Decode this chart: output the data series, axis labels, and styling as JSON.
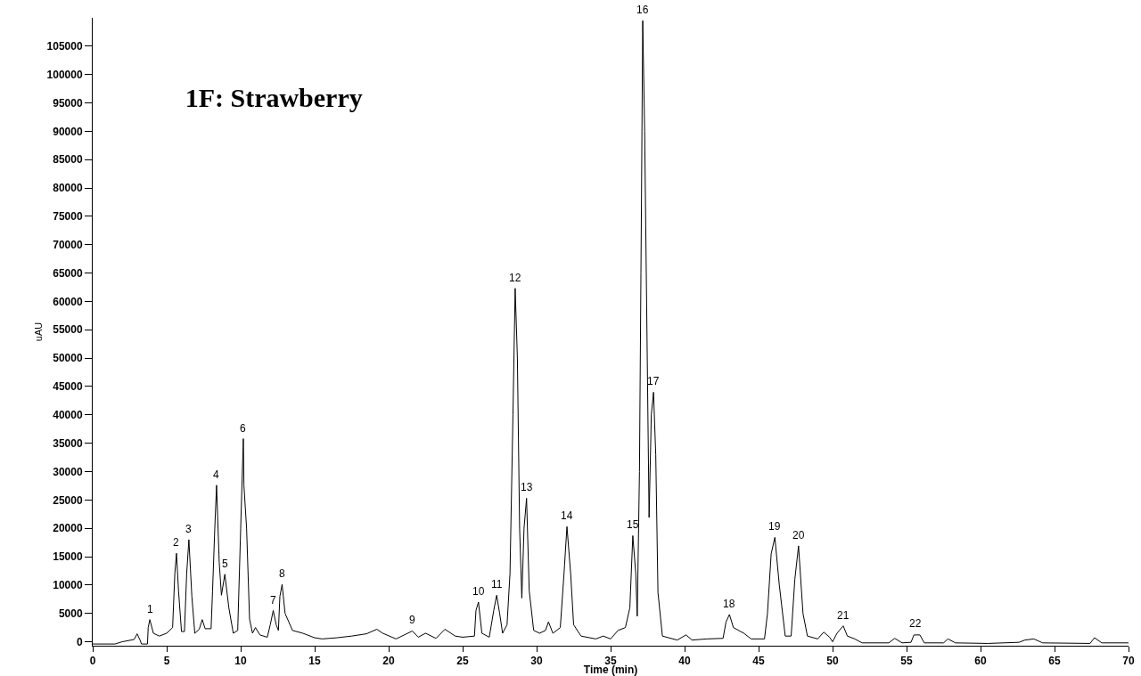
{
  "chart_data": {
    "type": "line",
    "title": "1F: Strawberry",
    "xlabel": "Time (min)",
    "ylabel": "uAU",
    "x": [
      0,
      1.5,
      2.0,
      2.8,
      3.0,
      3.2,
      3.3,
      3.7,
      3.75,
      3.86,
      4.1,
      4.5,
      5.0,
      5.4,
      5.55,
      5.66,
      5.8,
      6.0,
      6.2,
      6.35,
      6.5,
      6.7,
      6.9,
      7.2,
      7.4,
      7.6,
      8.0,
      8.1,
      8.25,
      8.37,
      8.55,
      8.7,
      8.93,
      9.2,
      9.5,
      9.8,
      10.0,
      10.18,
      10.22,
      10.4,
      10.6,
      10.8,
      11.0,
      11.3,
      11.8,
      12.0,
      12.2,
      12.4,
      12.55,
      12.65,
      12.8,
      13.0,
      13.5,
      14.2,
      15.0,
      15.5,
      16.5,
      17.5,
      18.5,
      19.2,
      19.6,
      20.5,
      21.6,
      22.0,
      22.5,
      23.2,
      23.8,
      24.5,
      25.0,
      25.8,
      25.9,
      26.07,
      26.3,
      26.8,
      27.1,
      27.3,
      27.5,
      27.7,
      28.0,
      28.2,
      28.4,
      28.55,
      28.7,
      28.85,
      29.0,
      29.15,
      29.32,
      29.5,
      29.8,
      30.2,
      30.6,
      30.8,
      31.1,
      31.6,
      31.85,
      32.05,
      32.3,
      32.5,
      33.0,
      34.0,
      34.5,
      35.0,
      35.5,
      36.0,
      36.3,
      36.5,
      36.7,
      36.8,
      36.95,
      37.05,
      37.17,
      37.3,
      37.6,
      37.75,
      37.9,
      38.05,
      38.2,
      38.5,
      39.5,
      40.1,
      40.5,
      41.5,
      42.6,
      42.8,
      43.03,
      43.3,
      44.0,
      44.5,
      45.4,
      45.6,
      45.85,
      46.1,
      46.4,
      46.8,
      47.2,
      47.45,
      47.7,
      48.0,
      48.3,
      49.0,
      49.4,
      49.8,
      50.0,
      50.3,
      50.72,
      51.0,
      51.5,
      52.0,
      53.8,
      54.2,
      54.7,
      55.3,
      55.5,
      55.9,
      56.2,
      57.5,
      57.8,
      58.3,
      60.5,
      62.6,
      63.0,
      63.6,
      64.2,
      67.4,
      67.7,
      68.2,
      70
    ],
    "series": [
      {
        "color": "#000000",
        "values": [
          -400,
          -400,
          0,
          400,
          1400,
          300,
          -400,
          -400,
          2500,
          3900,
          1500,
          1000,
          1500,
          2500,
          12000,
          15600,
          9000,
          1800,
          1800,
          12000,
          18000,
          8000,
          1500,
          2200,
          3900,
          2300,
          2300,
          9000,
          20000,
          27600,
          14000,
          8200,
          11900,
          6000,
          1500,
          2000,
          20000,
          35800,
          27600,
          20000,
          4000,
          1500,
          2500,
          1200,
          800,
          3000,
          5500,
          3000,
          2000,
          8000,
          10100,
          5000,
          2000,
          1500,
          700,
          500,
          700,
          1000,
          1400,
          2200,
          1500,
          500,
          1900,
          800,
          1500,
          600,
          2200,
          1000,
          800,
          1000,
          5500,
          7000,
          1500,
          800,
          5500,
          8200,
          5000,
          1500,
          3000,
          12000,
          40000,
          62300,
          50000,
          20000,
          7700,
          20000,
          25300,
          9000,
          2000,
          1500,
          2000,
          3500,
          1500,
          2500,
          12000,
          20300,
          12000,
          3000,
          1000,
          500,
          1000,
          500,
          2000,
          2500,
          6000,
          18700,
          12000,
          4500,
          30000,
          65000,
          109500,
          90000,
          21900,
          40000,
          44000,
          33000,
          8700,
          1000,
          300,
          1200,
          300,
          500,
          600,
          3500,
          4800,
          2500,
          1500,
          500,
          500,
          5000,
          15500,
          18400,
          10000,
          1000,
          1000,
          11000,
          16900,
          5000,
          1000,
          500,
          1700,
          800,
          0,
          1500,
          2800,
          1000,
          500,
          -200,
          -200,
          600,
          -200,
          -100,
          1200,
          1200,
          -200,
          -200,
          500,
          -200,
          -300,
          -100,
          300,
          500,
          -200,
          -300,
          700,
          -200,
          -200
        ]
      }
    ],
    "xlim": [
      0,
      70
    ],
    "xticks": [
      0,
      5,
      10,
      15,
      20,
      25,
      30,
      35,
      40,
      45,
      50,
      55,
      60,
      65,
      70
    ],
    "ylim": [
      -700,
      110000
    ],
    "yticks": [
      0,
      5000,
      10000,
      15000,
      20000,
      25000,
      30000,
      35000,
      40000,
      45000,
      50000,
      55000,
      60000,
      65000,
      70000,
      75000,
      80000,
      85000,
      90000,
      95000,
      100000,
      105000
    ],
    "grid": false,
    "marker": "none",
    "line_style": "solid",
    "annotations": [
      {
        "text": "1",
        "x": 3.86,
        "y": 3900
      },
      {
        "text": "2",
        "x": 5.66,
        "y": 15600
      },
      {
        "text": "3",
        "x": 6.5,
        "y": 18000
      },
      {
        "text": "4",
        "x": 8.37,
        "y": 27600
      },
      {
        "text": "5",
        "x": 8.93,
        "y": 11900
      },
      {
        "text": "6",
        "x": 10.18,
        "y": 35800
      },
      {
        "text": "7",
        "x": 12.2,
        "y": 5500
      },
      {
        "text": "8",
        "x": 12.8,
        "y": 10100
      },
      {
        "text": "9",
        "x": 21.6,
        "y": 1900
      },
      {
        "text": "10",
        "x": 26.07,
        "y": 7000
      },
      {
        "text": "11",
        "x": 27.3,
        "y": 8200
      },
      {
        "text": "12",
        "x": 28.55,
        "y": 62300
      },
      {
        "text": "13",
        "x": 29.32,
        "y": 25300
      },
      {
        "text": "14",
        "x": 32.05,
        "y": 20300
      },
      {
        "text": "15",
        "x": 36.5,
        "y": 18700
      },
      {
        "text": "16",
        "x": 37.17,
        "y": 109500
      },
      {
        "text": "17",
        "x": 37.9,
        "y": 44000
      },
      {
        "text": "18",
        "x": 43.03,
        "y": 4800
      },
      {
        "text": "19",
        "x": 46.1,
        "y": 18400
      },
      {
        "text": "20",
        "x": 47.7,
        "y": 16900
      },
      {
        "text": "21",
        "x": 50.72,
        "y": 2800
      },
      {
        "text": "22",
        "x": 55.58,
        "y": 1400
      }
    ]
  }
}
